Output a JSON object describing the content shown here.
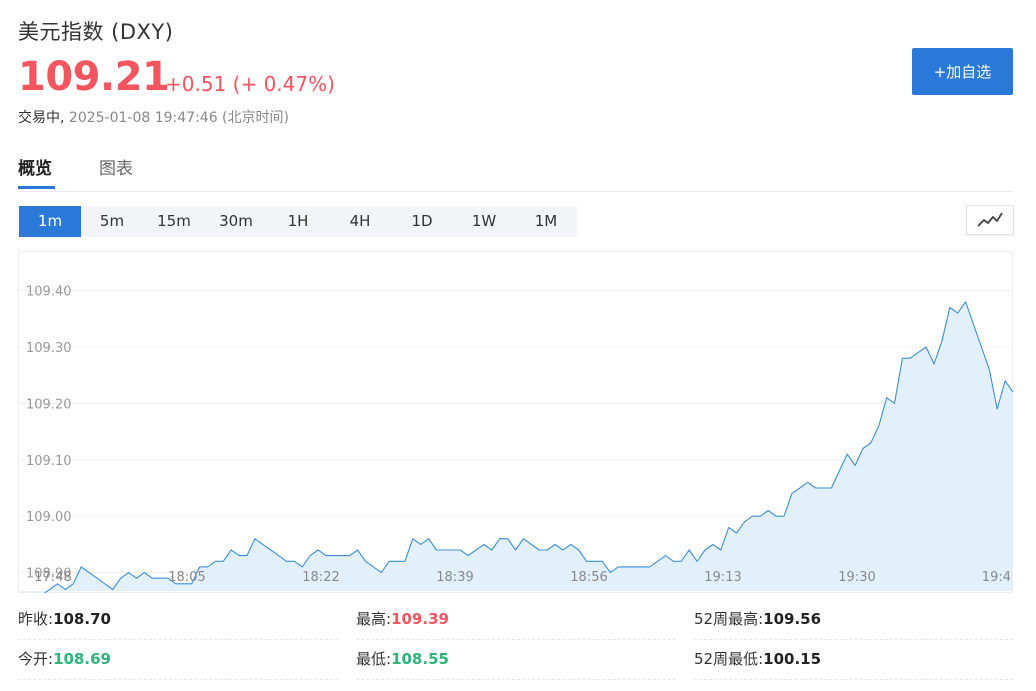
{
  "header": {
    "title": "美元指数 (DXY)",
    "price": "109.21",
    "change": "+0.51 (+ 0.47%)",
    "status_state": "交易中,",
    "status_time": "2025-01-08 19:47:46 (北京时间)",
    "add_button": "+加自选"
  },
  "tabs": [
    {
      "label": "概览",
      "active": true
    },
    {
      "label": "图表",
      "active": false
    }
  ],
  "periods": [
    {
      "label": "1m",
      "active": true
    },
    {
      "label": "5m",
      "active": false
    },
    {
      "label": "15m",
      "active": false
    },
    {
      "label": "30m",
      "active": false
    },
    {
      "label": "1H",
      "active": false
    },
    {
      "label": "4H",
      "active": false
    },
    {
      "label": "1D",
      "active": false
    },
    {
      "label": "1W",
      "active": false
    },
    {
      "label": "1M",
      "active": false
    }
  ],
  "chart_type_icon": "line-chart-icon",
  "chart_data": {
    "type": "area",
    "ylim": [
      108.85,
      109.44
    ],
    "yticks": [
      "109.40",
      "109.30",
      "109.20",
      "109.10",
      "109.00",
      "108.90"
    ],
    "xticks": [
      "17:48",
      "18:05",
      "18:22",
      "18:39",
      "18:56",
      "19:13",
      "19:30",
      "19:4"
    ],
    "x_start": "17:45",
    "x_end": "19:47",
    "values": [
      108.85,
      108.86,
      108.86,
      108.86,
      108.87,
      108.88,
      108.87,
      108.88,
      108.91,
      108.9,
      108.89,
      108.88,
      108.87,
      108.89,
      108.9,
      108.89,
      108.9,
      108.89,
      108.89,
      108.89,
      108.88,
      108.88,
      108.88,
      108.91,
      108.91,
      108.92,
      108.92,
      108.94,
      108.93,
      108.93,
      108.96,
      108.95,
      108.94,
      108.93,
      108.92,
      108.92,
      108.91,
      108.93,
      108.94,
      108.93,
      108.93,
      108.93,
      108.93,
      108.94,
      108.92,
      108.91,
      108.9,
      108.92,
      108.92,
      108.92,
      108.96,
      108.95,
      108.96,
      108.94,
      108.94,
      108.94,
      108.94,
      108.93,
      108.94,
      108.95,
      108.94,
      108.96,
      108.96,
      108.94,
      108.96,
      108.95,
      108.94,
      108.94,
      108.95,
      108.94,
      108.95,
      108.94,
      108.92,
      108.92,
      108.92,
      108.9,
      108.91,
      108.91,
      108.91,
      108.91,
      108.91,
      108.92,
      108.93,
      108.92,
      108.92,
      108.94,
      108.92,
      108.94,
      108.95,
      108.94,
      108.98,
      108.97,
      108.99,
      109.0,
      109.0,
      109.01,
      109.0,
      109.0,
      109.04,
      109.05,
      109.06,
      109.05,
      109.05,
      109.05,
      109.08,
      109.11,
      109.09,
      109.12,
      109.13,
      109.16,
      109.21,
      109.2,
      109.28,
      109.28,
      109.29,
      109.3,
      109.27,
      109.31,
      109.37,
      109.36,
      109.38,
      109.34,
      109.3,
      109.26,
      109.19,
      109.24,
      109.22
    ],
    "line_color": "#3d8fdc",
    "fill_color": "#e2f0fc"
  },
  "stats": [
    [
      {
        "label": "昨收:",
        "value": "108.70",
        "tone": "neutral"
      },
      {
        "label": "最高:",
        "value": "109.39",
        "tone": "up"
      },
      {
        "label": "52周最高:",
        "value": "109.56",
        "tone": "neutral"
      }
    ],
    [
      {
        "label": "今开:",
        "value": "108.69",
        "tone": "down"
      },
      {
        "label": "最低:",
        "value": "108.55",
        "tone": "down"
      },
      {
        "label": "52周最低:",
        "value": "100.15",
        "tone": "neutral"
      }
    ]
  ]
}
